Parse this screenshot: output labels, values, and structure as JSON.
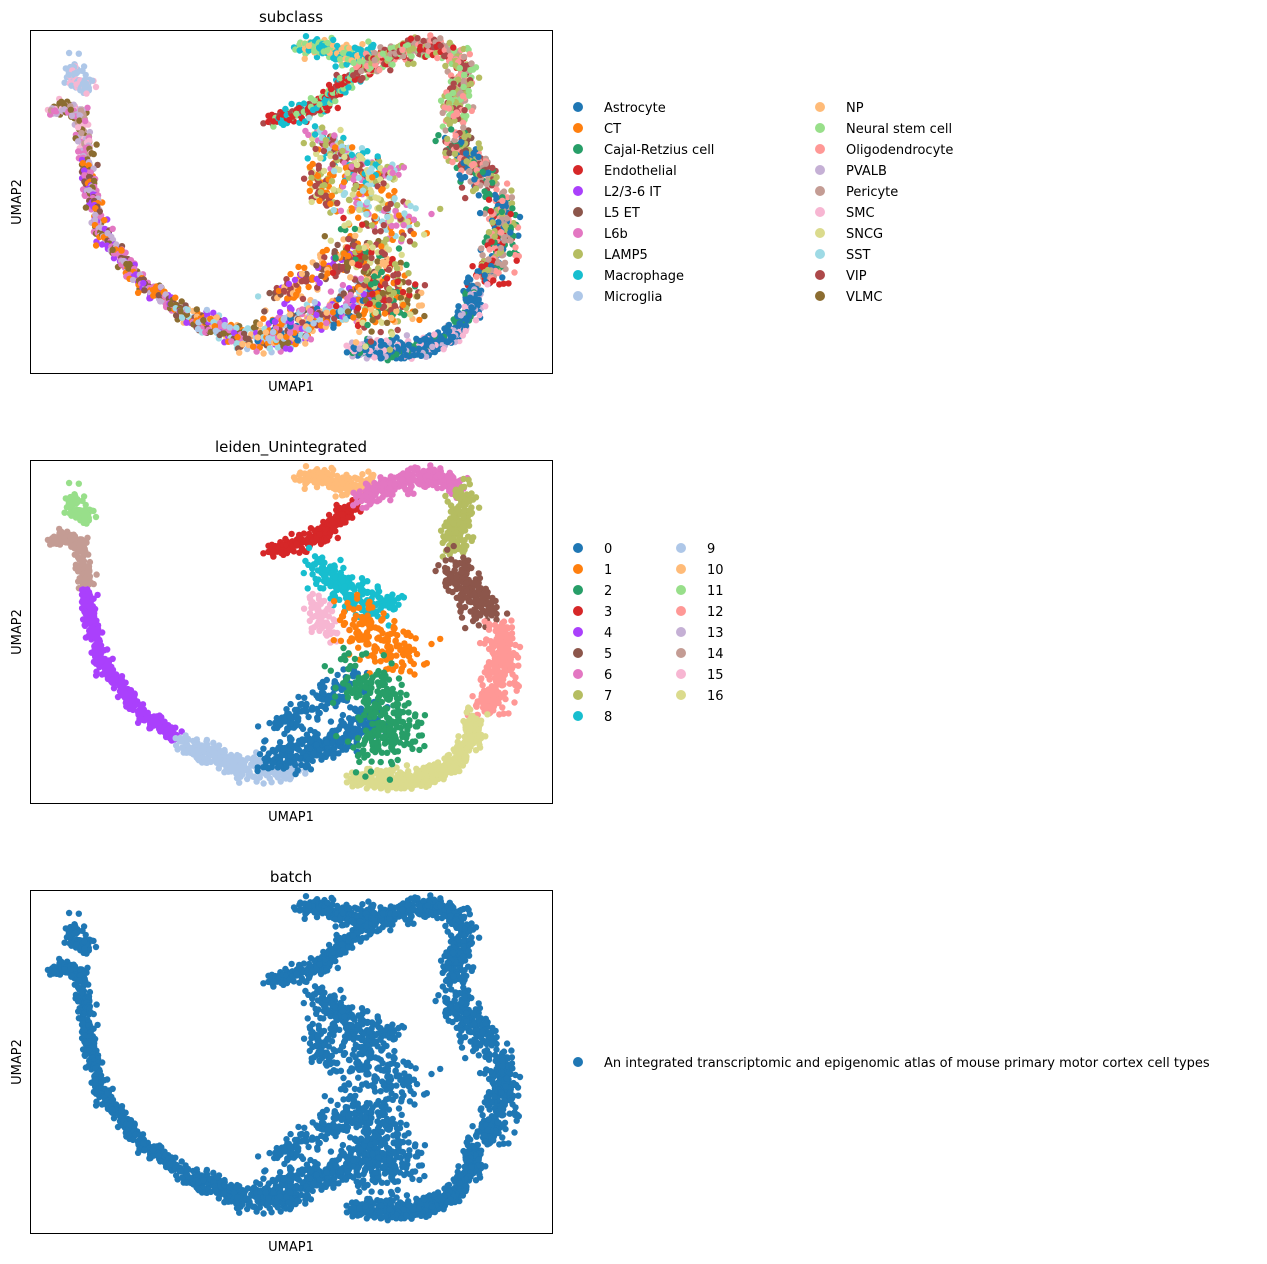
{
  "chart_data": [
    {
      "type": "scatter",
      "title": "subclass",
      "xlabel": "UMAP1",
      "ylabel": "UMAP2",
      "xticks": "none",
      "yticks": "none",
      "grid": false,
      "legend_placement": "right, 2 columns",
      "categories": [
        "Astrocyte",
        "CT",
        "Cajal-Retzius cell",
        "Endothelial",
        "L2/3-6 IT",
        "L5 ET",
        "L6b",
        "LAMP5",
        "Macrophage",
        "Microglia",
        "NP",
        "Neural stem cell",
        "Oligodendrocyte",
        "PVALB",
        "Pericyte",
        "SMC",
        "SNCG",
        "SST",
        "VIP",
        "VLMC"
      ],
      "colors": [
        "#1f77b4",
        "#ff7f0e",
        "#279e68",
        "#d62728",
        "#aa40fc",
        "#8c564b",
        "#e377c2",
        "#b5bd61",
        "#17becf",
        "#aec7e8",
        "#ffbb78",
        "#98df8a",
        "#ff9896",
        "#c5b0d5",
        "#c49c94",
        "#f7b6d2",
        "#dbdb8d",
        "#9edae5",
        "#ad494a",
        "#8c6d31"
      ]
    },
    {
      "type": "scatter",
      "title": "leiden_Unintegrated",
      "xlabel": "UMAP1",
      "ylabel": "UMAP2",
      "xticks": "none",
      "yticks": "none",
      "grid": false,
      "legend_placement": "right, 2 columns",
      "categories": [
        "0",
        "1",
        "2",
        "3",
        "4",
        "5",
        "6",
        "7",
        "8",
        "9",
        "10",
        "11",
        "12",
        "13",
        "14",
        "15",
        "16"
      ],
      "colors": [
        "#1f77b4",
        "#ff7f0e",
        "#279e68",
        "#d62728",
        "#aa40fc",
        "#8c564b",
        "#e377c2",
        "#b5bd61",
        "#17becf",
        "#aec7e8",
        "#ffbb78",
        "#98df8a",
        "#ff9896",
        "#c5b0d5",
        "#c49c94",
        "#f7b6d2",
        "#dbdb8d"
      ]
    },
    {
      "type": "scatter",
      "title": "batch",
      "xlabel": "UMAP1",
      "ylabel": "UMAP2",
      "xticks": "none",
      "yticks": "none",
      "grid": false,
      "legend_placement": "right, 1 column",
      "categories": [
        "An integrated transcriptomic and epigenomic atlas of mouse primary motor cortex cell types"
      ],
      "colors": [
        "#1f77b4"
      ]
    }
  ]
}
